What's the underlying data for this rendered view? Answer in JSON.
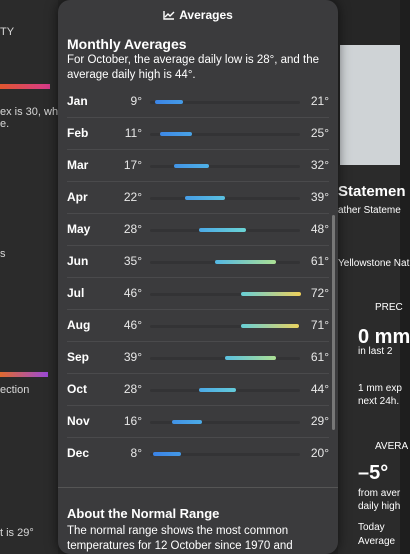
{
  "background_left": {
    "texts": [
      "TY",
      "ex is 30, whi",
      "e.",
      "s",
      "ection",
      "t is 29°"
    ]
  },
  "background_right": {
    "texts": [
      "Statemen",
      "ather Stateme",
      "Yellowstone Nat",
      "PREC",
      "0 mm",
      "in last 2",
      "1 mm exp",
      "next 24h.",
      "AVERA",
      "–5°",
      "from aver",
      "daily high",
      "Today",
      "Average"
    ]
  },
  "popover": {
    "header": "Averages",
    "title": "Monthly Averages",
    "description": "For October, the average daily low is 28°, and the average daily high is 44°.",
    "rows": [
      {
        "month": "Jan",
        "low": {
          "value": 9,
          "label": "9°"
        },
        "high": {
          "value": 21,
          "label": "21°"
        }
      },
      {
        "month": "Feb",
        "low": {
          "value": 11,
          "label": "11°"
        },
        "high": {
          "value": 25,
          "label": "25°"
        }
      },
      {
        "month": "Mar",
        "low": {
          "value": 17,
          "label": "17°"
        },
        "high": {
          "value": 32,
          "label": "32°"
        }
      },
      {
        "month": "Apr",
        "low": {
          "value": 22,
          "label": "22°"
        },
        "high": {
          "value": 39,
          "label": "39°"
        }
      },
      {
        "month": "May",
        "low": {
          "value": 28,
          "label": "28°"
        },
        "high": {
          "value": 48,
          "label": "48°"
        }
      },
      {
        "month": "Jun",
        "low": {
          "value": 35,
          "label": "35°"
        },
        "high": {
          "value": 61,
          "label": "61°"
        }
      },
      {
        "month": "Jul",
        "low": {
          "value": 46,
          "label": "46°"
        },
        "high": {
          "value": 72,
          "label": "72°"
        }
      },
      {
        "month": "Aug",
        "low": {
          "value": 46,
          "label": "46°"
        },
        "high": {
          "value": 71,
          "label": "71°"
        }
      },
      {
        "month": "Sep",
        "low": {
          "value": 39,
          "label": "39°"
        },
        "high": {
          "value": 61,
          "label": "61°"
        }
      },
      {
        "month": "Oct",
        "low": {
          "value": 28,
          "label": "28°"
        },
        "high": {
          "value": 44,
          "label": "44°"
        }
      },
      {
        "month": "Nov",
        "low": {
          "value": 16,
          "label": "16°"
        },
        "high": {
          "value": 29,
          "label": "29°"
        }
      },
      {
        "month": "Dec",
        "low": {
          "value": 8,
          "label": "8°"
        },
        "high": {
          "value": 20,
          "label": "20°"
        }
      }
    ],
    "about_title": "About the Normal Range",
    "about_text": "The normal range shows the most common temperatures for 12 October since 1970 and"
  }
}
